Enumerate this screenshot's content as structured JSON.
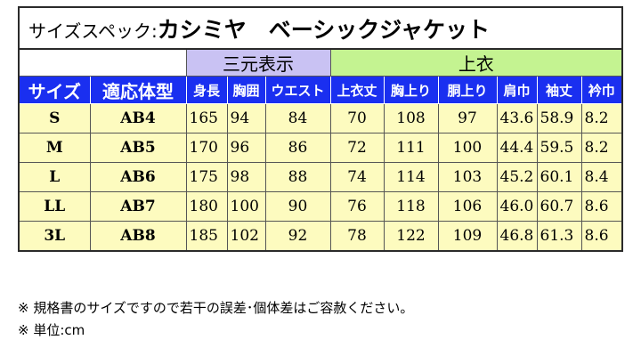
{
  "title": {
    "spec_label": "サイズスペック:",
    "product": "カシミヤ　ベーシックジャケット"
  },
  "groups": {
    "body": "三元表示",
    "garment": "上衣"
  },
  "headers": [
    "サイズ",
    "適応体型",
    "身長",
    "胸囲",
    "ウエスト",
    "上衣丈",
    "胸上り",
    "胴上り",
    "肩巾",
    "袖丈",
    "衿巾"
  ],
  "rows": [
    [
      "S",
      "AB4",
      "165",
      "94",
      "84",
      "70",
      "108",
      "97",
      "43.6",
      "58.9",
      "8.2"
    ],
    [
      "M",
      "AB5",
      "170",
      "96",
      "86",
      "72",
      "111",
      "100",
      "44.4",
      "59.5",
      "8.2"
    ],
    [
      "L",
      "AB6",
      "175",
      "98",
      "88",
      "74",
      "114",
      "103",
      "45.2",
      "60.1",
      "8.4"
    ],
    [
      "LL",
      "AB7",
      "180",
      "100",
      "90",
      "76",
      "118",
      "106",
      "46.0",
      "60.7",
      "8.6"
    ],
    [
      "3L",
      "AB8",
      "185",
      "102",
      "92",
      "78",
      "122",
      "109",
      "46.8",
      "61.3",
      "8.6"
    ]
  ],
  "notes": [
    "※ 規格書のサイズですので若干の誤差･個体差はご容赦ください。",
    "※ 単位:cm"
  ],
  "colors": {
    "header_bg": "#1a2ff0",
    "group_body_bg": "#c9c2f3",
    "group_garment_bg": "#c4f391",
    "data_bg": "#fdfbbf"
  }
}
